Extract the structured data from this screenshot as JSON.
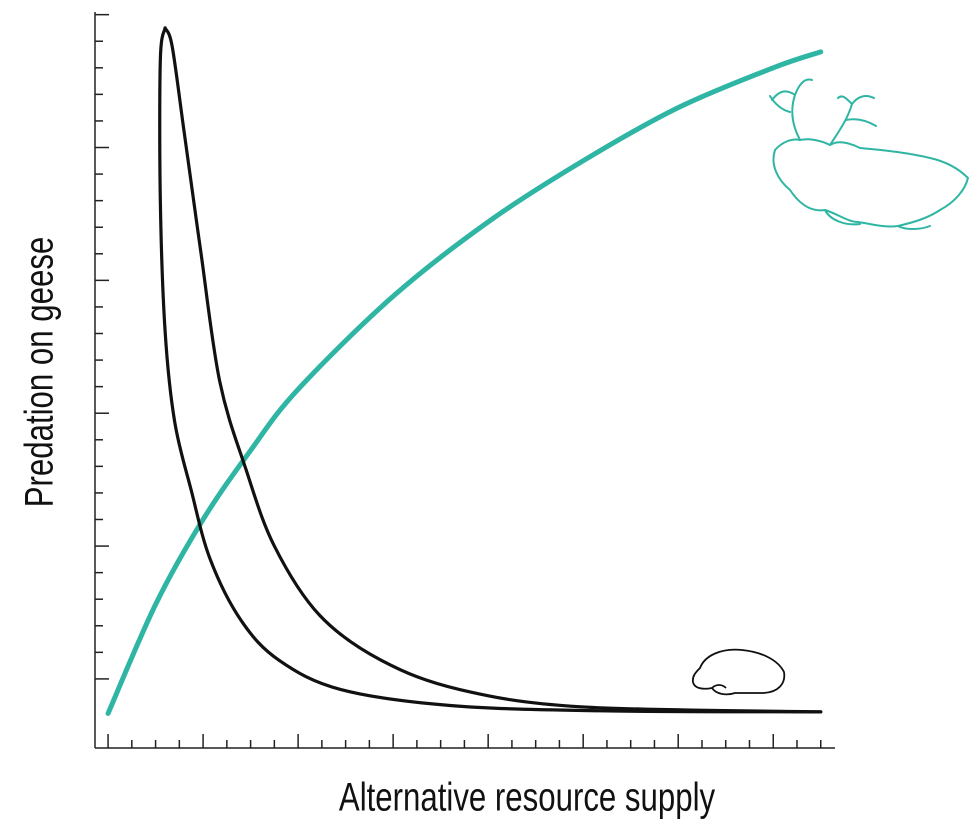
{
  "chart_data": {
    "type": "line",
    "y_label": "Predation on geese",
    "x_label": "Alternative resource supply",
    "xlim": [
      -0.55,
      30.6
    ],
    "ylim": [
      -2.6,
      25.1
    ],
    "xticks": [
      0,
      1,
      2,
      3,
      4,
      5,
      6,
      7,
      8,
      9,
      10,
      11,
      12,
      13,
      14,
      15,
      16,
      17,
      18,
      19,
      20,
      21,
      22,
      23,
      24,
      25,
      26,
      27,
      28,
      29,
      30
    ],
    "yticks": [
      0,
      1,
      2,
      3,
      4,
      5,
      6,
      7,
      8,
      9,
      10,
      11,
      12,
      13,
      14,
      15,
      16,
      17,
      18,
      19,
      20,
      21,
      22,
      23,
      24,
      25
    ],
    "series": [
      {
        "color": "#2fb5a3",
        "x": [
          0,
          2,
          4,
          6,
          8,
          12,
          16,
          20,
          24,
          28,
          30
        ],
        "values": [
          -1.3,
          2.8,
          6.0,
          8.6,
          10.9,
          14.4,
          17.2,
          19.5,
          21.5,
          23.0,
          23.6
        ]
      },
      {
        "color": "#111111",
        "x": [
          2.4,
          2.2,
          2.2,
          2.4,
          2.8,
          3.5,
          4.3,
          5.6,
          7.2,
          9.8,
          14.4,
          20.7,
          30
        ],
        "values": [
          24.5,
          23.3,
          18.0,
          13.1,
          9.7,
          7.1,
          4.5,
          2.2,
          0.7,
          -0.4,
          -1.0,
          -1.2,
          -1.24
        ]
      },
      {
        "color": "#111111",
        "x": [
          2.4,
          2.7,
          3.2,
          3.9,
          4.7,
          5.8,
          7.0,
          8.9,
          11.5,
          14.8,
          19.9,
          30
        ],
        "values": [
          24.5,
          23.8,
          20.6,
          16.1,
          11.2,
          7.9,
          5.0,
          2.4,
          0.7,
          -0.4,
          -1.05,
          -1.24
        ]
      }
    ]
  }
}
